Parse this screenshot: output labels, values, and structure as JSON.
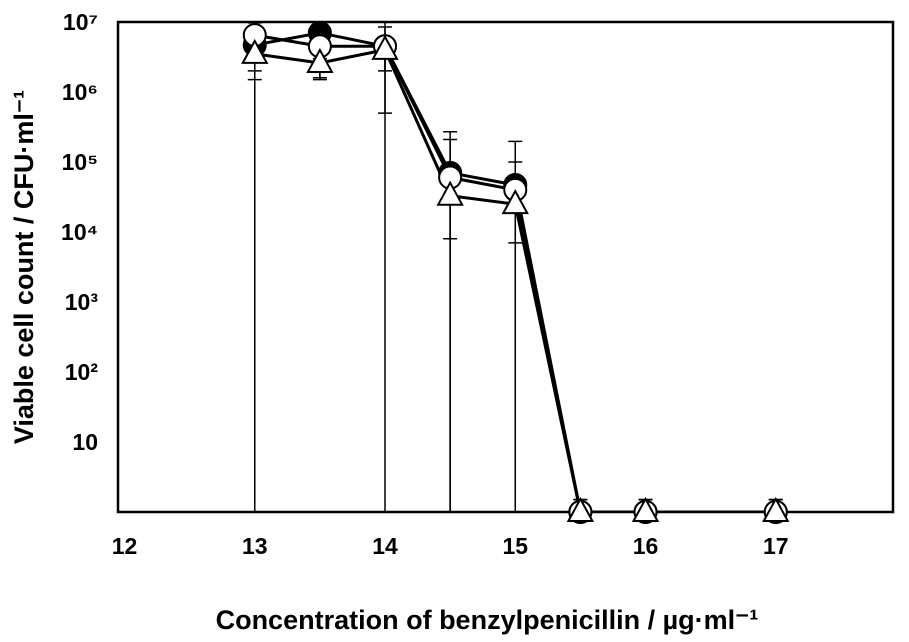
{
  "chart_data": {
    "type": "line",
    "x_label": "Concentration of benzylpenicillin / µg·ml⁻¹",
    "y_label": "Viable cell count / CFU·ml⁻¹",
    "y_scale": "log",
    "xlim": [
      11.95,
      17.9
    ],
    "xticks": [
      12,
      13,
      14,
      15,
      16,
      17
    ],
    "ylim": [
      1,
      10000000
    ],
    "yticks": [
      10,
      {
        "value": 100,
        "label": "10²"
      },
      {
        "value": 1000,
        "label": "10³"
      },
      {
        "value": 10000,
        "label": "10⁴"
      },
      {
        "value": 100000,
        "label": "10⁵"
      },
      {
        "value": 1000000,
        "label": "10⁶"
      },
      {
        "value": 10000000,
        "label": "10⁷"
      }
    ],
    "grid": false,
    "x": [
      13,
      13.5,
      14,
      14.5,
      15,
      15.5,
      16,
      17
    ],
    "series": [
      {
        "color": "#000000",
        "marker": "circle",
        "marker_fill": "#000000",
        "values": [
          4700000,
          7000000,
          4500000,
          70000,
          47000,
          1,
          1,
          1
        ],
        "errors": [
          5000000,
          4000000,
          5500000,
          200000,
          150000,
          0.5,
          0.5,
          0.5
        ]
      },
      {
        "color": "#000000",
        "marker": "circle",
        "marker_fill": "#ffffff",
        "values": [
          6500000,
          4500000,
          4500000,
          60000,
          40000,
          1,
          1,
          1
        ],
        "errors": [
          5000000,
          3000000,
          4000000,
          150000,
          60000,
          0.5,
          0.5,
          0.5
        ]
      },
      {
        "color": "#000000",
        "marker": "triangle",
        "marker_fill": "#ffffff",
        "values": [
          3500000,
          2600000,
          4000000,
          33000,
          25000,
          1,
          1,
          1
        ],
        "errors": [
          1500000,
          1000000,
          2000000,
          25000,
          18000,
          0.5,
          0.5,
          0.5
        ]
      }
    ]
  }
}
